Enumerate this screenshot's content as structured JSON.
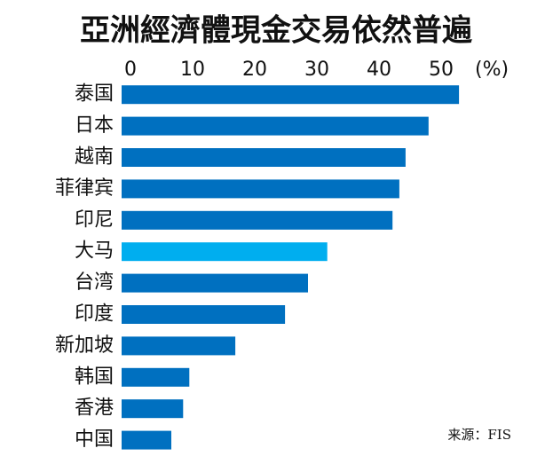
{
  "chart_data": {
    "type": "bar",
    "orientation": "horizontal",
    "title": "亞洲經濟體現金交易依然普遍",
    "xlabel": "(%)",
    "source": "来源：FIS",
    "categories": [
      "泰国",
      "日本",
      "越南",
      "菲律宾",
      "印尼",
      "大马",
      "台湾",
      "印度",
      "新加坡",
      "韩国",
      "香港",
      "中国"
    ],
    "values": [
      54.3,
      49.4,
      45.7,
      44.7,
      43.6,
      33.1,
      30,
      26.3,
      18.3,
      10.9,
      9.9,
      8
    ],
    "colors": [
      "#0070c0",
      "#0070c0",
      "#0070c0",
      "#0070c0",
      "#0070c0",
      "#00aeef",
      "#0070c0",
      "#0070c0",
      "#0070c0",
      "#0070c0",
      "#0070c0",
      "#0070c0"
    ],
    "xlim": [
      0,
      55
    ],
    "xticks": [
      0,
      10,
      20,
      30,
      40,
      50
    ],
    "grid": false
  }
}
